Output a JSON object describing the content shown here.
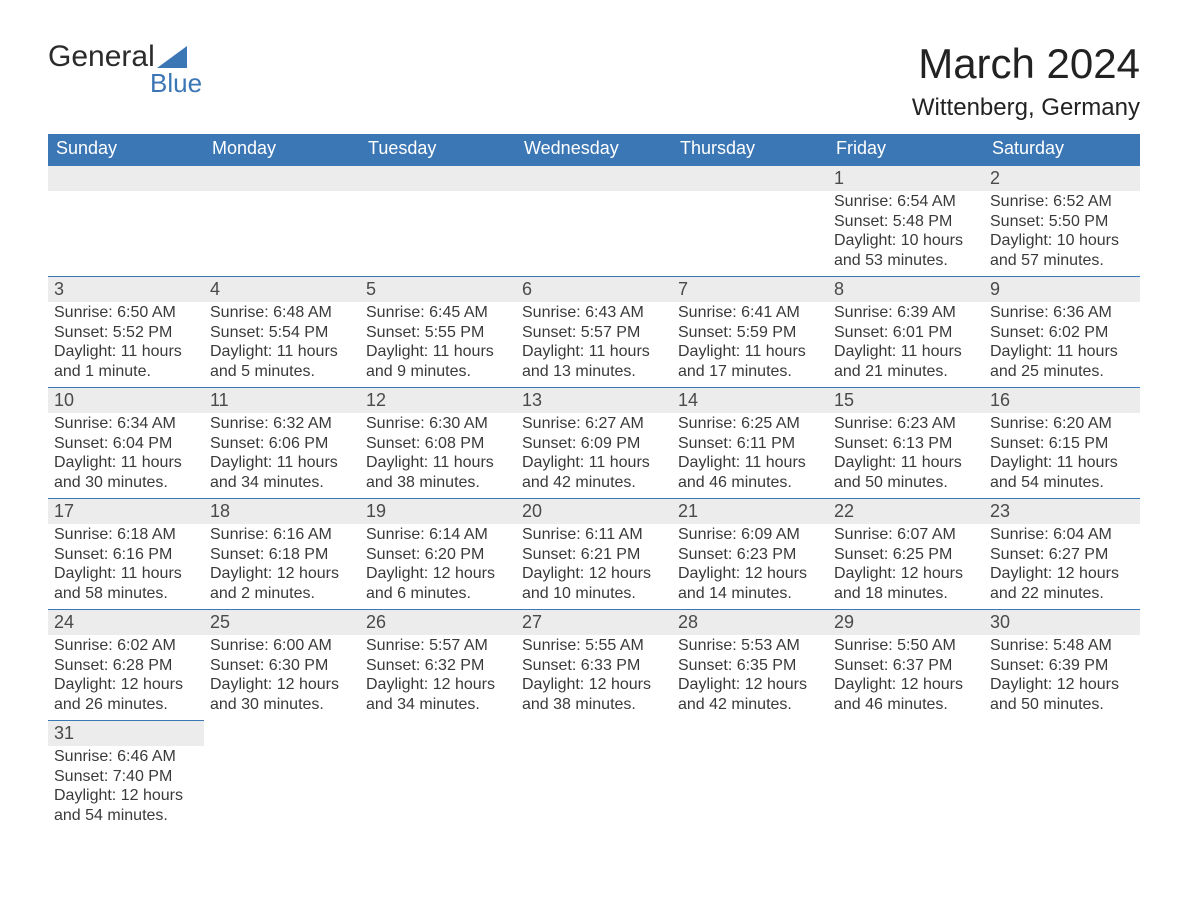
{
  "logo": {
    "word1": "General",
    "word2": "Blue",
    "tri_color": "#3b76b5"
  },
  "title": "March 2024",
  "location": "Wittenberg, Germany",
  "colors": {
    "header_bg": "#3b76b5",
    "header_text": "#ffffff",
    "daynum_bg": "#ececec",
    "row_border": "#3b76b5",
    "body_text": "#3a3a3a"
  },
  "day_headers": [
    "Sunday",
    "Monday",
    "Tuesday",
    "Wednesday",
    "Thursday",
    "Friday",
    "Saturday"
  ],
  "weeks": [
    [
      null,
      null,
      null,
      null,
      null,
      {
        "n": "1",
        "sr": "Sunrise: 6:54 AM",
        "ss": "Sunset: 5:48 PM",
        "d1": "Daylight: 10 hours",
        "d2": "and 53 minutes."
      },
      {
        "n": "2",
        "sr": "Sunrise: 6:52 AM",
        "ss": "Sunset: 5:50 PM",
        "d1": "Daylight: 10 hours",
        "d2": "and 57 minutes."
      }
    ],
    [
      {
        "n": "3",
        "sr": "Sunrise: 6:50 AM",
        "ss": "Sunset: 5:52 PM",
        "d1": "Daylight: 11 hours",
        "d2": "and 1 minute."
      },
      {
        "n": "4",
        "sr": "Sunrise: 6:48 AM",
        "ss": "Sunset: 5:54 PM",
        "d1": "Daylight: 11 hours",
        "d2": "and 5 minutes."
      },
      {
        "n": "5",
        "sr": "Sunrise: 6:45 AM",
        "ss": "Sunset: 5:55 PM",
        "d1": "Daylight: 11 hours",
        "d2": "and 9 minutes."
      },
      {
        "n": "6",
        "sr": "Sunrise: 6:43 AM",
        "ss": "Sunset: 5:57 PM",
        "d1": "Daylight: 11 hours",
        "d2": "and 13 minutes."
      },
      {
        "n": "7",
        "sr": "Sunrise: 6:41 AM",
        "ss": "Sunset: 5:59 PM",
        "d1": "Daylight: 11 hours",
        "d2": "and 17 minutes."
      },
      {
        "n": "8",
        "sr": "Sunrise: 6:39 AM",
        "ss": "Sunset: 6:01 PM",
        "d1": "Daylight: 11 hours",
        "d2": "and 21 minutes."
      },
      {
        "n": "9",
        "sr": "Sunrise: 6:36 AM",
        "ss": "Sunset: 6:02 PM",
        "d1": "Daylight: 11 hours",
        "d2": "and 25 minutes."
      }
    ],
    [
      {
        "n": "10",
        "sr": "Sunrise: 6:34 AM",
        "ss": "Sunset: 6:04 PM",
        "d1": "Daylight: 11 hours",
        "d2": "and 30 minutes."
      },
      {
        "n": "11",
        "sr": "Sunrise: 6:32 AM",
        "ss": "Sunset: 6:06 PM",
        "d1": "Daylight: 11 hours",
        "d2": "and 34 minutes."
      },
      {
        "n": "12",
        "sr": "Sunrise: 6:30 AM",
        "ss": "Sunset: 6:08 PM",
        "d1": "Daylight: 11 hours",
        "d2": "and 38 minutes."
      },
      {
        "n": "13",
        "sr": "Sunrise: 6:27 AM",
        "ss": "Sunset: 6:09 PM",
        "d1": "Daylight: 11 hours",
        "d2": "and 42 minutes."
      },
      {
        "n": "14",
        "sr": "Sunrise: 6:25 AM",
        "ss": "Sunset: 6:11 PM",
        "d1": "Daylight: 11 hours",
        "d2": "and 46 minutes."
      },
      {
        "n": "15",
        "sr": "Sunrise: 6:23 AM",
        "ss": "Sunset: 6:13 PM",
        "d1": "Daylight: 11 hours",
        "d2": "and 50 minutes."
      },
      {
        "n": "16",
        "sr": "Sunrise: 6:20 AM",
        "ss": "Sunset: 6:15 PM",
        "d1": "Daylight: 11 hours",
        "d2": "and 54 minutes."
      }
    ],
    [
      {
        "n": "17",
        "sr": "Sunrise: 6:18 AM",
        "ss": "Sunset: 6:16 PM",
        "d1": "Daylight: 11 hours",
        "d2": "and 58 minutes."
      },
      {
        "n": "18",
        "sr": "Sunrise: 6:16 AM",
        "ss": "Sunset: 6:18 PM",
        "d1": "Daylight: 12 hours",
        "d2": "and 2 minutes."
      },
      {
        "n": "19",
        "sr": "Sunrise: 6:14 AM",
        "ss": "Sunset: 6:20 PM",
        "d1": "Daylight: 12 hours",
        "d2": "and 6 minutes."
      },
      {
        "n": "20",
        "sr": "Sunrise: 6:11 AM",
        "ss": "Sunset: 6:21 PM",
        "d1": "Daylight: 12 hours",
        "d2": "and 10 minutes."
      },
      {
        "n": "21",
        "sr": "Sunrise: 6:09 AM",
        "ss": "Sunset: 6:23 PM",
        "d1": "Daylight: 12 hours",
        "d2": "and 14 minutes."
      },
      {
        "n": "22",
        "sr": "Sunrise: 6:07 AM",
        "ss": "Sunset: 6:25 PM",
        "d1": "Daylight: 12 hours",
        "d2": "and 18 minutes."
      },
      {
        "n": "23",
        "sr": "Sunrise: 6:04 AM",
        "ss": "Sunset: 6:27 PM",
        "d1": "Daylight: 12 hours",
        "d2": "and 22 minutes."
      }
    ],
    [
      {
        "n": "24",
        "sr": "Sunrise: 6:02 AM",
        "ss": "Sunset: 6:28 PM",
        "d1": "Daylight: 12 hours",
        "d2": "and 26 minutes."
      },
      {
        "n": "25",
        "sr": "Sunrise: 6:00 AM",
        "ss": "Sunset: 6:30 PM",
        "d1": "Daylight: 12 hours",
        "d2": "and 30 minutes."
      },
      {
        "n": "26",
        "sr": "Sunrise: 5:57 AM",
        "ss": "Sunset: 6:32 PM",
        "d1": "Daylight: 12 hours",
        "d2": "and 34 minutes."
      },
      {
        "n": "27",
        "sr": "Sunrise: 5:55 AM",
        "ss": "Sunset: 6:33 PM",
        "d1": "Daylight: 12 hours",
        "d2": "and 38 minutes."
      },
      {
        "n": "28",
        "sr": "Sunrise: 5:53 AM",
        "ss": "Sunset: 6:35 PM",
        "d1": "Daylight: 12 hours",
        "d2": "and 42 minutes."
      },
      {
        "n": "29",
        "sr": "Sunrise: 5:50 AM",
        "ss": "Sunset: 6:37 PM",
        "d1": "Daylight: 12 hours",
        "d2": "and 46 minutes."
      },
      {
        "n": "30",
        "sr": "Sunrise: 5:48 AM",
        "ss": "Sunset: 6:39 PM",
        "d1": "Daylight: 12 hours",
        "d2": "and 50 minutes."
      }
    ],
    [
      {
        "n": "31",
        "sr": "Sunrise: 6:46 AM",
        "ss": "Sunset: 7:40 PM",
        "d1": "Daylight: 12 hours",
        "d2": "and 54 minutes."
      },
      null,
      null,
      null,
      null,
      null,
      null
    ]
  ]
}
